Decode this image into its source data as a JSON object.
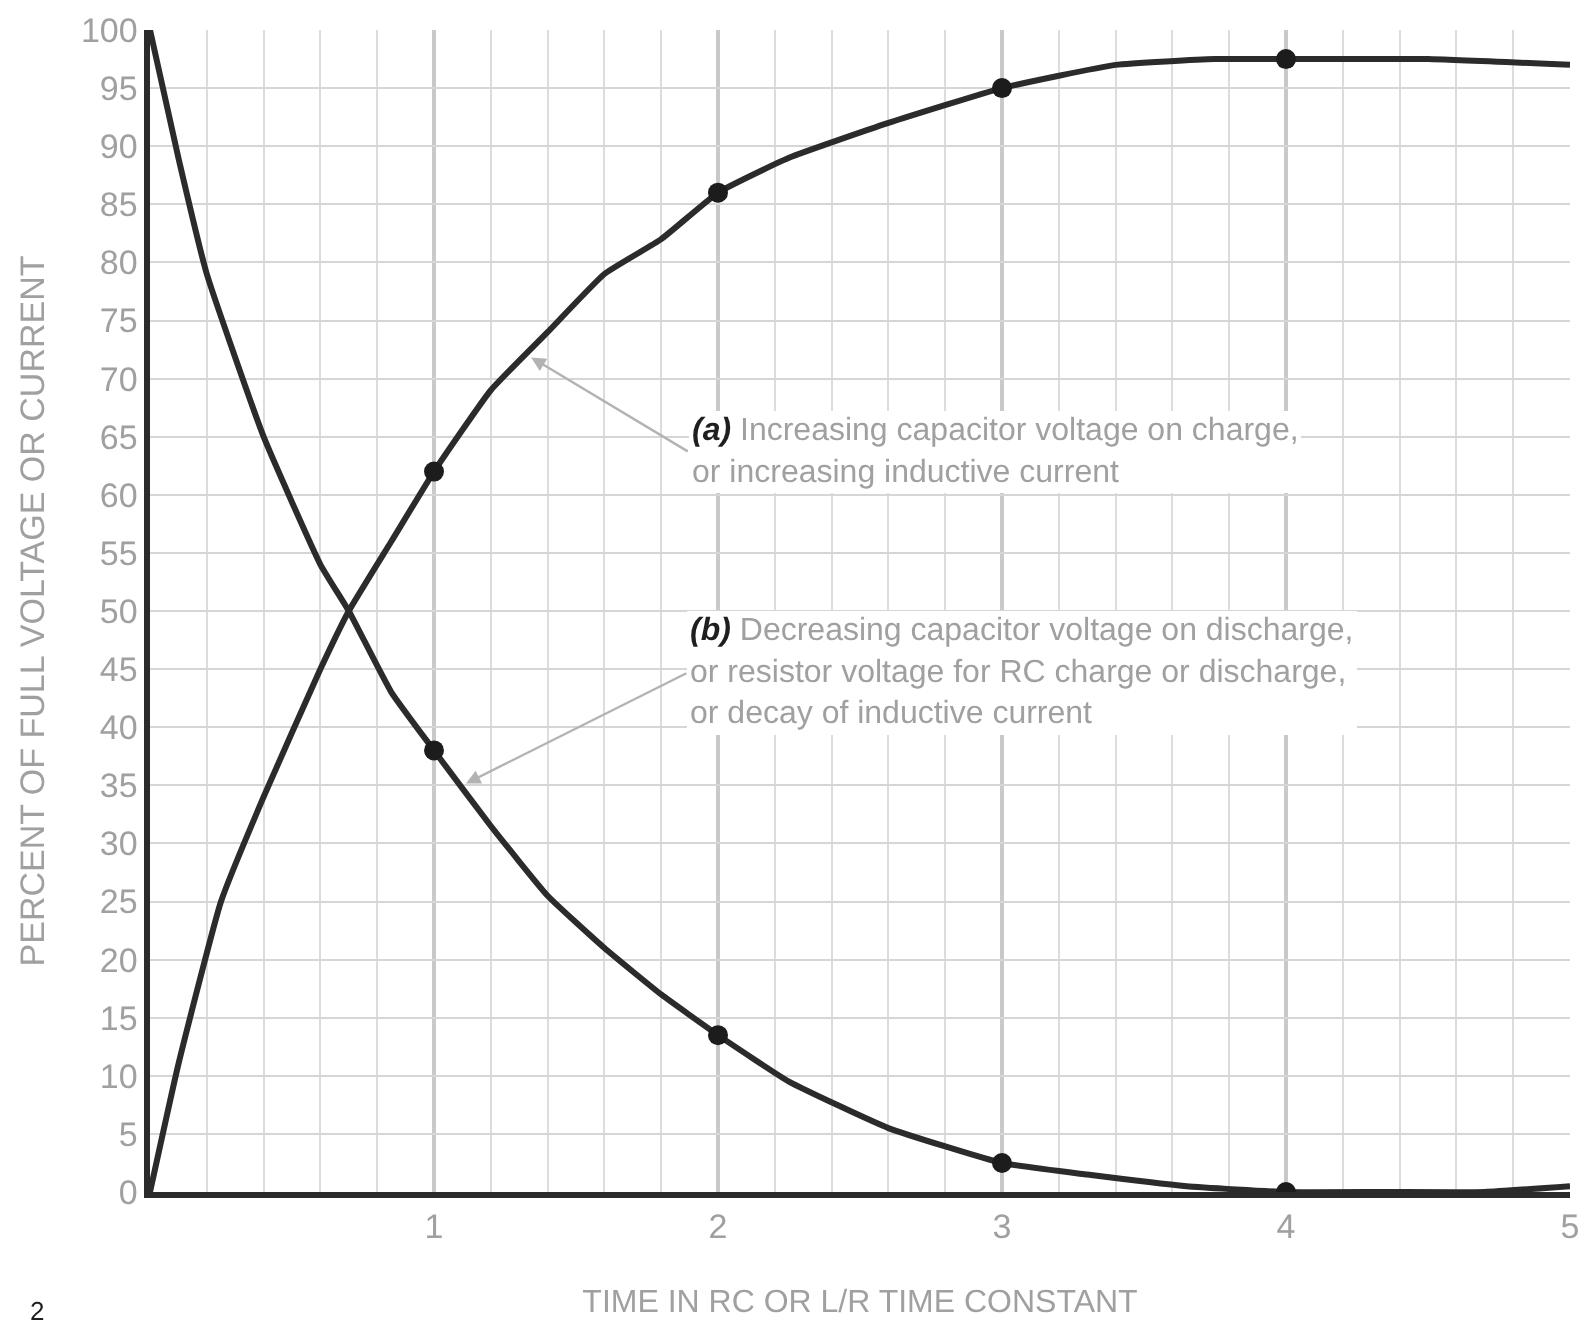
{
  "chart_data": {
    "type": "line",
    "xlabel": "TIME IN RC OR L/R TIME CONSTANT",
    "ylabel": "PERCENT OF FULL VOLTAGE OR CURRENT",
    "xlim": [
      0,
      5
    ],
    "xticks": [
      {
        "value": 0.2,
        "label": null
      },
      {
        "value": 0.4,
        "label": null
      },
      {
        "value": 0.6,
        "label": null
      },
      {
        "value": 0.8,
        "label": null
      },
      1,
      {
        "value": 1.2,
        "label": null
      },
      {
        "value": 1.4,
        "label": null
      },
      {
        "value": 1.6,
        "label": null
      },
      {
        "value": 1.8,
        "label": null
      },
      2,
      {
        "value": 2.2,
        "label": null
      },
      {
        "value": 2.4,
        "label": null
      },
      {
        "value": 2.6,
        "label": null
      },
      {
        "value": 2.8,
        "label": null
      },
      3,
      {
        "value": 3.2,
        "label": null
      },
      {
        "value": 3.4,
        "label": null
      },
      {
        "value": 3.6,
        "label": null
      },
      {
        "value": 3.8,
        "label": null
      },
      4,
      {
        "value": 4.2,
        "label": null
      },
      {
        "value": 4.4,
        "label": null
      },
      {
        "value": 4.6,
        "label": null
      },
      {
        "value": 4.8,
        "label": null
      },
      5
    ],
    "ylim": [
      0,
      100
    ],
    "yticks": [
      0,
      5,
      10,
      15,
      20,
      25,
      30,
      35,
      40,
      45,
      50,
      55,
      60,
      65,
      70,
      75,
      80,
      85,
      90,
      95,
      100
    ],
    "grid": true,
    "series": [
      {
        "color": "#2b2b2b",
        "x": [
          0,
          0.1,
          0.25,
          0.4,
          0.6,
          0.7,
          0.85,
          1,
          1.2,
          1.4,
          1.6,
          1.8,
          2,
          2.25,
          2.6,
          3,
          3.4,
          3.75,
          4,
          4.5,
          5
        ],
        "values": [
          0,
          11,
          25,
          34,
          45,
          50,
          56,
          62,
          69,
          74,
          79,
          82,
          86,
          89,
          92,
          95,
          97,
          97.5,
          97.5,
          97.5,
          97
        ]
      },
      {
        "color": "#2b2b2b",
        "x": [
          0,
          0.1,
          0.2,
          0.4,
          0.6,
          0.7,
          0.85,
          1,
          1.2,
          1.4,
          1.6,
          1.8,
          2,
          2.25,
          2.6,
          3,
          3.3,
          3.65,
          4,
          4.35,
          4.7,
          5
        ],
        "values": [
          100,
          89,
          79,
          65,
          54,
          50,
          43,
          38,
          31.5,
          25.5,
          21,
          17,
          13.5,
          9.5,
          5.5,
          2.5,
          1.5,
          0.5,
          0,
          0,
          0,
          0.5
        ]
      },
      {
        "type": "scatter",
        "marker": "circle",
        "color": "#1c1c1c",
        "x": [
          1,
          2,
          3,
          4
        ],
        "values": [
          62,
          86,
          95,
          97.5
        ]
      },
      {
        "type": "scatter",
        "marker": "circle",
        "color": "#1c1c1c",
        "x": [
          1,
          2,
          3,
          4
        ],
        "values": [
          38,
          13.5,
          2.5,
          0
        ]
      }
    ],
    "annotations": [
      {
        "text": "(a) Increasing capacitor voltage on charge,\nor increasing inductive current",
        "x": 1.33,
        "y": 72
      },
      {
        "text": "(b) Decreasing capacitor voltage on discharge,\nor resistor voltage for RC charge or discharge,\nor decay of inductive current",
        "x": 1.1,
        "y": 35
      },
      "2"
    ]
  }
}
